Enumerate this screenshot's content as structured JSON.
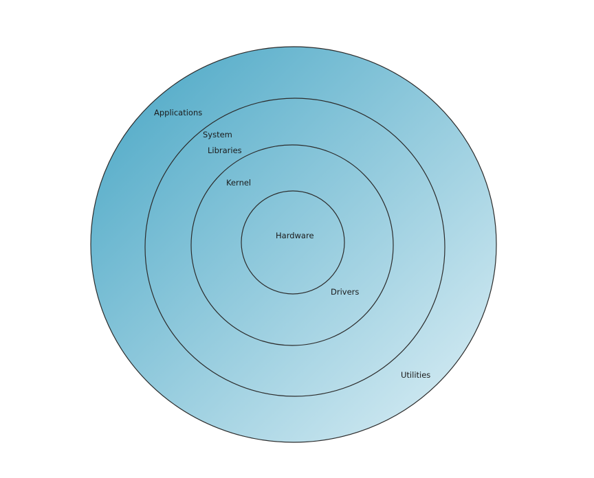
{
  "colors": {
    "gradient_start": "#46a5c4",
    "gradient_end": "#dff0f6",
    "stroke": "#2b2b2b",
    "text": "#1a1a1a",
    "background": "#ffffff"
  },
  "layers": {
    "applications": "Applications",
    "system": "System",
    "libraries": "Libraries",
    "kernel": "Kernel",
    "hardware": "Hardware",
    "drivers": "Drivers",
    "utilities": "Utilities"
  }
}
